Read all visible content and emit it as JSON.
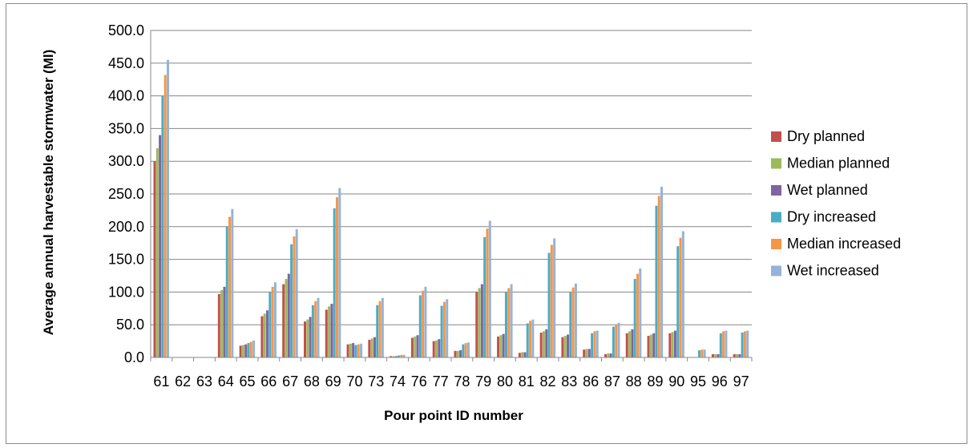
{
  "chart_data": {
    "type": "bar",
    "title": "",
    "xlabel": "Pour point ID number",
    "ylabel": "Average annual harvestable stormwater (Ml)",
    "ylim": [
      0,
      500
    ],
    "yticks": [
      "0.0",
      "50.0",
      "100.0",
      "150.0",
      "200.0",
      "250.0",
      "300.0",
      "350.0",
      "400.0",
      "450.0",
      "500.0"
    ],
    "grid": true,
    "legend_position": "right",
    "categories": [
      "61",
      "62",
      "63",
      "64",
      "65",
      "66",
      "67",
      "68",
      "69",
      "70",
      "73",
      "74",
      "76",
      "77",
      "78",
      "79",
      "80",
      "81",
      "82",
      "83",
      "86",
      "87",
      "88",
      "89",
      "90",
      "95",
      "96",
      "97"
    ],
    "series": [
      {
        "name": "Dry planned",
        "color": "#C0504D",
        "values": [
          300,
          0,
          0,
          97,
          18,
          63,
          112,
          55,
          73,
          20,
          27,
          2,
          30,
          25,
          10,
          100,
          32,
          7,
          38,
          31,
          12,
          5,
          37,
          33,
          37,
          0,
          5,
          5
        ]
      },
      {
        "name": "Median planned",
        "color": "#9BBB59",
        "values": [
          320,
          0,
          0,
          103,
          19,
          67,
          120,
          58,
          78,
          21,
          29,
          2,
          32,
          26,
          10,
          106,
          34,
          8,
          40,
          33,
          13,
          6,
          40,
          35,
          39,
          0,
          5,
          5
        ]
      },
      {
        "name": "Wet planned",
        "color": "#8064A2",
        "values": [
          340,
          0,
          0,
          108,
          20,
          72,
          128,
          62,
          82,
          22,
          31,
          2,
          34,
          28,
          11,
          112,
          36,
          8,
          43,
          35,
          13,
          6,
          43,
          37,
          41,
          0,
          5,
          5
        ]
      },
      {
        "name": "Dry increased",
        "color": "#4BACC6",
        "values": [
          400,
          0,
          0,
          200,
          22,
          100,
          173,
          80,
          228,
          19,
          80,
          3,
          95,
          79,
          20,
          184,
          100,
          52,
          160,
          100,
          37,
          47,
          120,
          232,
          170,
          11,
          37,
          38
        ]
      },
      {
        "name": "Median increased",
        "color": "#F79646",
        "values": [
          432,
          0,
          0,
          215,
          24,
          108,
          185,
          86,
          245,
          20,
          86,
          4,
          102,
          85,
          22,
          197,
          106,
          56,
          172,
          107,
          40,
          50,
          128,
          247,
          183,
          12,
          40,
          40
        ]
      },
      {
        "name": "Wet increased",
        "color": "#95B3D7",
        "values": [
          455,
          0,
          0,
          227,
          26,
          115,
          196,
          91,
          259,
          21,
          91,
          4,
          108,
          89,
          23,
          209,
          112,
          58,
          182,
          113,
          41,
          53,
          136,
          261,
          193,
          12,
          41,
          41
        ]
      }
    ]
  }
}
